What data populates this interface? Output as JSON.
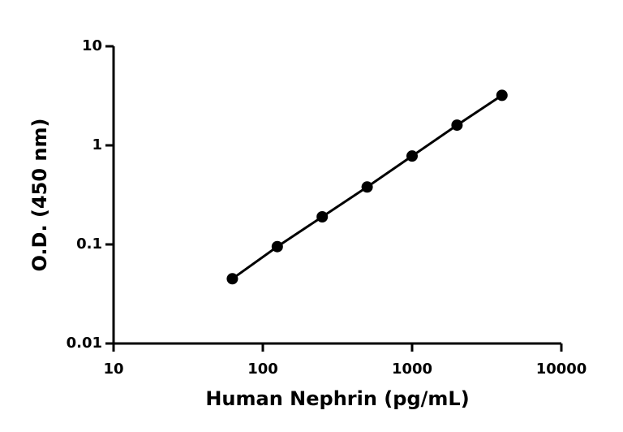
{
  "chart_data": {
    "type": "scatter",
    "xlabel": "Human Nephrin (pg/mL)",
    "ylabel": "O.D. (450 nm)",
    "x": [
      62.5,
      125,
      250,
      500,
      1000,
      2000,
      4000
    ],
    "values": [
      0.045,
      0.095,
      0.19,
      0.38,
      0.78,
      1.6,
      3.2
    ],
    "color": "#000000",
    "connect": true,
    "xscale": "log",
    "yscale": "log",
    "xlim": [
      10,
      10000
    ],
    "ylim": [
      0.01,
      10
    ],
    "xticks": [
      10,
      100,
      1000,
      10000
    ],
    "yticks": [
      0.01,
      0.1,
      1,
      10
    ]
  }
}
